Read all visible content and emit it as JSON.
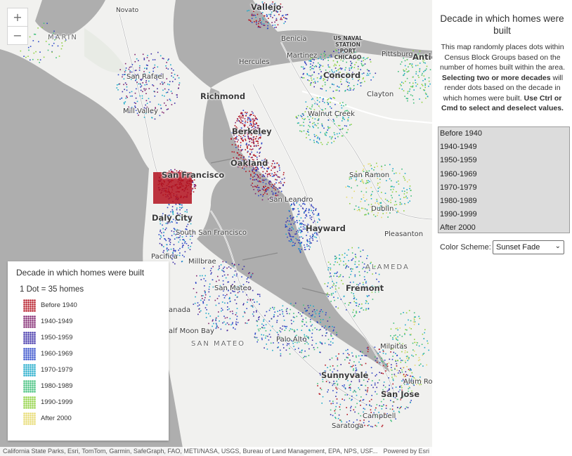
{
  "map": {
    "places": [
      {
        "id": "novato",
        "label": "Novato",
        "cls": "sm"
      },
      {
        "id": "vallejo",
        "label": "Vallejo",
        "cls": "big"
      },
      {
        "id": "marin",
        "label": "MARIN",
        "cls": "region"
      },
      {
        "id": "benicia",
        "label": "Benicia",
        "cls": "med"
      },
      {
        "id": "naval",
        "label": "US NAVAL STATION PORT CHICAGO",
        "cls": "sm"
      },
      {
        "id": "martinez",
        "label": "Martinez",
        "cls": "med"
      },
      {
        "id": "pittsburg",
        "label": "Pittsburg",
        "cls": "med"
      },
      {
        "id": "antioch",
        "label": "Antio",
        "cls": "big"
      },
      {
        "id": "sanrafael",
        "label": "San Rafael",
        "cls": "med"
      },
      {
        "id": "hercules",
        "label": "Hercules",
        "cls": "med"
      },
      {
        "id": "concord",
        "label": "Concord",
        "cls": "big"
      },
      {
        "id": "richmond",
        "label": "Richmond",
        "cls": "big"
      },
      {
        "id": "clayton",
        "label": "Clayton",
        "cls": "med"
      },
      {
        "id": "millvalley",
        "label": "Mill Valley",
        "cls": "med"
      },
      {
        "id": "walnutcreek",
        "label": "Walnut Creek",
        "cls": "med"
      },
      {
        "id": "berkeley",
        "label": "Berkeley",
        "cls": "big"
      },
      {
        "id": "oakland",
        "label": "Oakland",
        "cls": "big"
      },
      {
        "id": "sanfrancisco",
        "label": "San Francisco",
        "cls": "big"
      },
      {
        "id": "sanramon",
        "label": "San Ramon",
        "cls": "med"
      },
      {
        "id": "sanleandro",
        "label": "San Leandro",
        "cls": "med"
      },
      {
        "id": "dublin",
        "label": "Dublin",
        "cls": "med"
      },
      {
        "id": "dalycity",
        "label": "Daly City",
        "cls": "big"
      },
      {
        "id": "southsf",
        "label": "South San Francisco",
        "cls": "med"
      },
      {
        "id": "hayward",
        "label": "Hayward",
        "cls": "big"
      },
      {
        "id": "pleasanton",
        "label": "Pleasanton",
        "cls": "med"
      },
      {
        "id": "pacifica",
        "label": "Pacifica",
        "cls": "med"
      },
      {
        "id": "millbrae",
        "label": "Millbrae",
        "cls": "med"
      },
      {
        "id": "alameda",
        "label": "ALAMEDA",
        "cls": "region"
      },
      {
        "id": "sanmateo",
        "label": "San Mateo",
        "cls": "med"
      },
      {
        "id": "fremont",
        "label": "Fremont",
        "cls": "big"
      },
      {
        "id": "canada",
        "label": "anada",
        "cls": "med"
      },
      {
        "id": "halfmoonbay",
        "label": "alf Moon Bay",
        "cls": "med"
      },
      {
        "id": "sanmateoregion",
        "label": "SAN MATEO",
        "cls": "region"
      },
      {
        "id": "paloalto",
        "label": "Palo Alto",
        "cls": "med"
      },
      {
        "id": "milpitas",
        "label": "Milpitas",
        "cls": "med"
      },
      {
        "id": "sunnyvale",
        "label": "Sunnyvale",
        "cls": "big"
      },
      {
        "id": "alumrock",
        "label": "Alum Ro",
        "cls": "med"
      },
      {
        "id": "sanjose",
        "label": "San Jose",
        "cls": "big"
      },
      {
        "id": "campbell",
        "label": "Campbell",
        "cls": "med"
      },
      {
        "id": "saratoga",
        "label": "Saratoga",
        "cls": "med"
      }
    ],
    "zoom_in_label": "+",
    "zoom_out_label": "−",
    "attribution": "California State Parks, Esri, TomTom, Garmin, SafeGraph, FAO, METI/NASA, USGS, Bureau of Land Management, EPA, NPS, USF...",
    "powered_by": "Powered by Esri"
  },
  "legend": {
    "title": "Decade in which homes were built",
    "dot_value": "1 Dot = 35 homes",
    "items": [
      {
        "label": "Before 1940",
        "color": "#b3121f"
      },
      {
        "label": "1940-1949",
        "color": "#7d1f6b"
      },
      {
        "label": "1950-1959",
        "color": "#3a2ca6"
      },
      {
        "label": "1960-1969",
        "color": "#2c47c9"
      },
      {
        "label": "1970-1979",
        "color": "#1ca9c9"
      },
      {
        "label": "1980-1989",
        "color": "#3fbf7a"
      },
      {
        "label": "1990-1999",
        "color": "#8fd13f"
      },
      {
        "label": "After 2000",
        "color": "#e6d96a"
      }
    ]
  },
  "panel": {
    "title": "Decade in which homes were built",
    "desc_plain_1": "This map randomly places dots within Census Block Groups based on the number of homes built within the area.",
    "desc_bold_1": "Selecting two or more decades",
    "desc_plain_2": "will render dots based on the decade in which homes were built.",
    "desc_bold_2": "Use Ctrl or Cmd to select and deselect values.",
    "options": [
      "Before 1940",
      "1940-1949",
      "1950-1959",
      "1960-1969",
      "1970-1979",
      "1980-1989",
      "1990-1999",
      "After 2000"
    ],
    "color_scheme_label": "Color Scheme:",
    "color_scheme_value": "Sunset Fade"
  },
  "colors": {
    "water": "#aeaeae",
    "land": "#f1f1ef",
    "park": "#dfe6dc"
  }
}
